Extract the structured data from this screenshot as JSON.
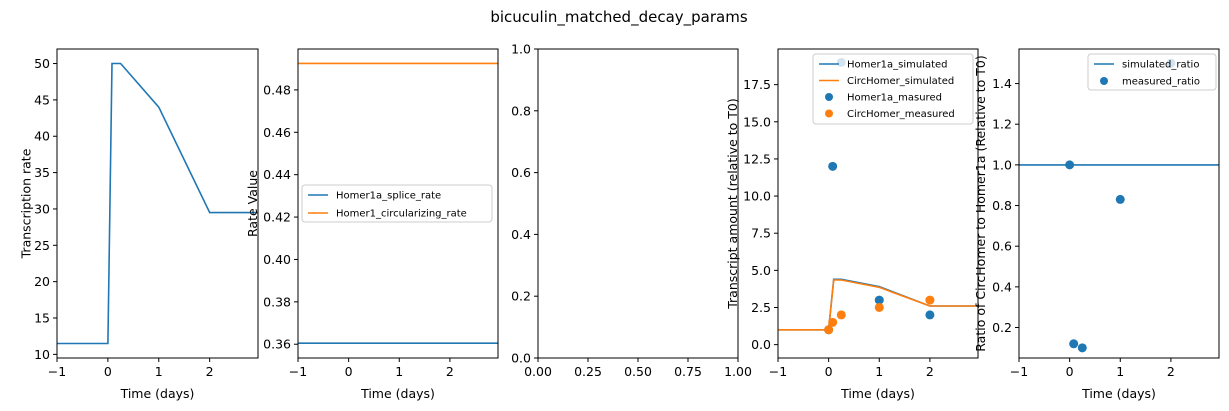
{
  "figure": {
    "title": "bicuculin_matched_decay_params",
    "colors": {
      "blue": "#1f77b4",
      "orange": "#ff7f0e"
    }
  },
  "chart_data": [
    {
      "type": "line",
      "xlabel": "Time (days)",
      "ylabel": "Transcription rate",
      "xlim": [
        -1,
        2.95
      ],
      "ylim": [
        9.5,
        52
      ],
      "xticks": [
        -1,
        0,
        1,
        2
      ],
      "yticks": [
        10,
        15,
        20,
        25,
        30,
        35,
        40,
        45,
        50
      ],
      "series": [
        {
          "name": "transcription_rate",
          "color": "#1f77b4",
          "x": [
            -1,
            0,
            0.08,
            0.25,
            1,
            2,
            2.95
          ],
          "y": [
            11.5,
            11.5,
            50,
            50,
            44,
            29.5,
            29.5
          ]
        }
      ]
    },
    {
      "type": "line",
      "xlabel": "Time (days)",
      "ylabel": "Rate Value",
      "xlim": [
        -1,
        2.95
      ],
      "ylim": [
        0.3535,
        0.4993
      ],
      "xticks": [
        -1,
        0,
        1,
        2
      ],
      "yticks": [
        0.36,
        0.38,
        0.4,
        0.42,
        0.44,
        0.46,
        0.48
      ],
      "legend": [
        "Homer1a_splice_rate",
        "Homer1_circularizing_rate"
      ],
      "series": [
        {
          "name": "Homer1a_splice_rate",
          "color": "#1f77b4",
          "x": [
            -1,
            2.95
          ],
          "y": [
            0.3605,
            0.3605
          ]
        },
        {
          "name": "Homer1_circularizing_rate",
          "color": "#ff7f0e",
          "x": [
            -1,
            2.95
          ],
          "y": [
            0.4925,
            0.4925
          ]
        }
      ]
    },
    {
      "type": "line",
      "xlabel": "",
      "ylabel": "",
      "xlim": [
        0,
        1
      ],
      "ylim": [
        0,
        1
      ],
      "xticks": [
        0.0,
        0.25,
        0.5,
        0.75,
        1.0
      ],
      "yticks": [
        0.0,
        0.2,
        0.4,
        0.6,
        0.8,
        1.0
      ],
      "series": []
    },
    {
      "type": "line",
      "xlabel": "Time (days)",
      "ylabel": "Transcript amount (relative to T0)",
      "xlim": [
        -1,
        2.95
      ],
      "ylim": [
        -0.9,
        19.9
      ],
      "xticks": [
        -1,
        0,
        1,
        2
      ],
      "yticks": [
        0.0,
        2.5,
        5.0,
        7.5,
        10.0,
        12.5,
        15.0,
        17.5
      ],
      "legend": [
        "Homer1a_simulated",
        "CircHomer_simulated",
        "Homer1a_masured",
        "CircHomer_measured"
      ],
      "series": [
        {
          "name": "Homer1a_simulated",
          "kind": "line",
          "color": "#1f77b4",
          "x": [
            -1,
            0,
            0.1,
            0.25,
            1,
            2,
            2.95
          ],
          "y": [
            1.0,
            1.0,
            4.4,
            4.4,
            3.9,
            2.6,
            2.6
          ]
        },
        {
          "name": "CircHomer_simulated",
          "kind": "line",
          "color": "#ff7f0e",
          "x": [
            -1,
            0,
            0.1,
            0.25,
            1,
            2,
            2.95
          ],
          "y": [
            1.0,
            1.0,
            4.35,
            4.35,
            3.85,
            2.6,
            2.6
          ]
        },
        {
          "name": "Homer1a_masured",
          "kind": "scatter",
          "color": "#1f77b4",
          "x": [
            0,
            0.08,
            0.25,
            1,
            2
          ],
          "y": [
            1.0,
            12.0,
            19.0,
            3.0,
            2.0
          ]
        },
        {
          "name": "CircHomer_measured",
          "kind": "scatter",
          "color": "#ff7f0e",
          "x": [
            0,
            0.08,
            0.25,
            1,
            2
          ],
          "y": [
            1.0,
            1.5,
            2.0,
            2.5,
            3.0
          ]
        }
      ]
    },
    {
      "type": "line",
      "xlabel": "Time (days)",
      "ylabel": "Ratio of CircHomer to Homer1a (Relative to T0)",
      "xlim": [
        -1,
        2.95
      ],
      "ylim": [
        0.05,
        1.57
      ],
      "xticks": [
        -1,
        0,
        1,
        2
      ],
      "yticks": [
        0.2,
        0.4,
        0.6,
        0.8,
        1.0,
        1.2,
        1.4
      ],
      "legend": [
        "simulated_ratio",
        "measured_ratio"
      ],
      "series": [
        {
          "name": "simulated_ratio",
          "kind": "line",
          "color": "#1f77b4",
          "x": [
            -1,
            2.95
          ],
          "y": [
            1.0,
            1.0
          ]
        },
        {
          "name": "measured_ratio",
          "kind": "scatter",
          "color": "#1f77b4",
          "x": [
            0,
            0.08,
            0.25,
            1,
            2
          ],
          "y": [
            1.0,
            0.12,
            0.1,
            0.83,
            1.5
          ]
        }
      ]
    }
  ]
}
